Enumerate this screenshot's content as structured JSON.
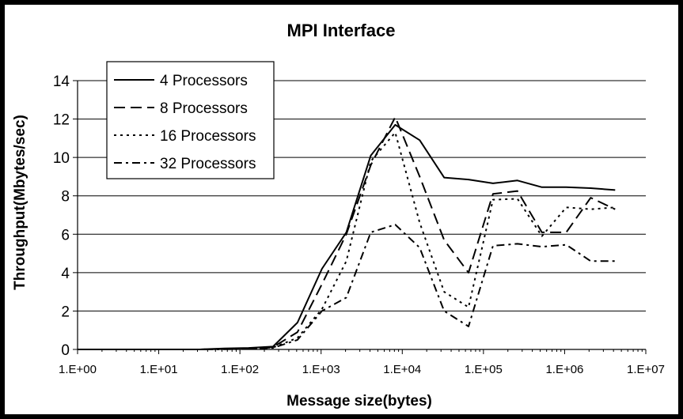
{
  "chart_data": {
    "type": "line",
    "title": "MPI Interface",
    "xlabel": "Message size(bytes)",
    "ylabel": "Throughput(Mbytes/sec)",
    "xscale": "log",
    "xlim": [
      1,
      10000000
    ],
    "ylim": [
      0,
      14
    ],
    "grid": "horizontal",
    "legend_position": "top-left",
    "x_tick_labels": [
      "1.E+00",
      "1.E+01",
      "1.E+02",
      "1.E+03",
      "1.E+04",
      "1.E+05",
      "1.E+06",
      "1.E+07"
    ],
    "x_tick_values": [
      1,
      10,
      100,
      1000,
      10000,
      100000,
      1000000,
      10000000
    ],
    "y_tick_labels": [
      "0",
      "2",
      "4",
      "6",
      "8",
      "10",
      "12",
      "14"
    ],
    "y_tick_values": [
      0,
      2,
      4,
      6,
      8,
      10,
      12,
      14
    ],
    "x": [
      1,
      2,
      4,
      8,
      16,
      32,
      64,
      128,
      256,
      512,
      1024,
      2048,
      4096,
      8192,
      16384,
      32768,
      65536,
      131072,
      262144,
      524288,
      1048576,
      2097152,
      4194304
    ],
    "series": [
      {
        "name": "4 Processors",
        "dash": "solid",
        "values": [
          0,
          0,
          0,
          0,
          0,
          0,
          0.05,
          0.08,
          0.15,
          1.4,
          4.2,
          6.1,
          10.1,
          11.7,
          10.9,
          8.95,
          8.85,
          8.65,
          8.8,
          8.45,
          8.45,
          8.4,
          8.3
        ]
      },
      {
        "name": "8 Processors",
        "dash": "long-dash",
        "values": [
          0,
          0,
          0,
          0,
          0,
          0,
          0.03,
          0.05,
          0.12,
          0.9,
          3.4,
          6.0,
          9.6,
          12.1,
          9.0,
          5.7,
          4.0,
          8.1,
          8.25,
          6.1,
          6.1,
          7.9,
          7.3
        ]
      },
      {
        "name": "16 Processors",
        "dash": "dotted",
        "values": [
          0,
          0,
          0,
          0,
          0,
          0,
          0.02,
          0.04,
          0.1,
          0.6,
          2.1,
          4.6,
          9.8,
          11.3,
          6.6,
          3.0,
          2.2,
          7.8,
          7.85,
          5.9,
          7.4,
          7.3,
          7.4
        ]
      },
      {
        "name": "32 Processors",
        "dash": "dash-dot",
        "values": [
          0,
          0,
          0,
          0,
          0,
          0,
          0.01,
          0.03,
          0.08,
          0.5,
          2.0,
          2.7,
          6.1,
          6.5,
          5.3,
          2.0,
          1.2,
          5.4,
          5.5,
          5.35,
          5.45,
          4.6,
          4.6
        ]
      }
    ]
  }
}
